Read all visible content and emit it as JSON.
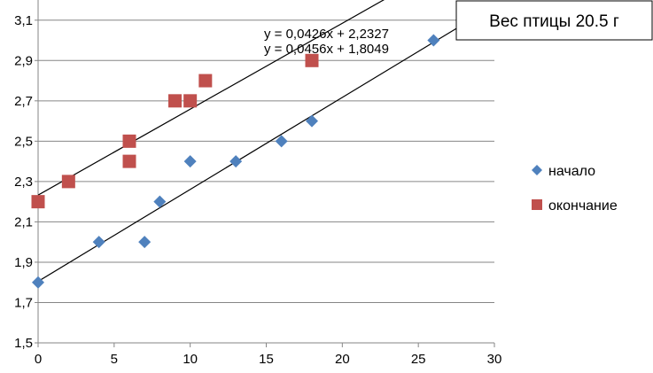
{
  "chart_data": {
    "type": "scatter",
    "title": "Вес птицы 20.5 г",
    "xlim": [
      0,
      30
    ],
    "ylim": [
      1.5,
      3.2
    ],
    "x_ticks": [
      "0",
      "5",
      "10",
      "15",
      "20",
      "25",
      "30"
    ],
    "y_ticks": [
      "1,5",
      "1,7",
      "1,9",
      "2,1",
      "2,3",
      "2,5",
      "2,7",
      "2,9",
      "3,1"
    ],
    "grid": "horizontal",
    "legend_position": "right",
    "series": [
      {
        "name": "начало",
        "marker": "diamond",
        "color": "#4F81BD",
        "points": [
          {
            "x": 0,
            "y": 1.8
          },
          {
            "x": 4,
            "y": 2.0
          },
          {
            "x": 7,
            "y": 2.0
          },
          {
            "x": 8,
            "y": 2.2
          },
          {
            "x": 10,
            "y": 2.4
          },
          {
            "x": 13,
            "y": 2.4
          },
          {
            "x": 16,
            "y": 2.5
          },
          {
            "x": 18,
            "y": 2.6
          },
          {
            "x": 26,
            "y": 3.0
          }
        ],
        "trendline": {
          "slope": 0.0456,
          "intercept": 1.8049,
          "label": "y = 0,0456x + 1,8049"
        }
      },
      {
        "name": "окончание",
        "marker": "square",
        "color": "#C0504D",
        "points": [
          {
            "x": 0,
            "y": 2.2
          },
          {
            "x": 2,
            "y": 2.3
          },
          {
            "x": 6,
            "y": 2.5
          },
          {
            "x": 6,
            "y": 2.4
          },
          {
            "x": 9,
            "y": 2.7
          },
          {
            "x": 10,
            "y": 2.7
          },
          {
            "x": 11,
            "y": 2.8
          },
          {
            "x": 18,
            "y": 2.9
          }
        ],
        "trendline": {
          "slope": 0.0426,
          "intercept": 2.2327,
          "label": "y = 0,0426x + 2,2327"
        }
      }
    ]
  }
}
